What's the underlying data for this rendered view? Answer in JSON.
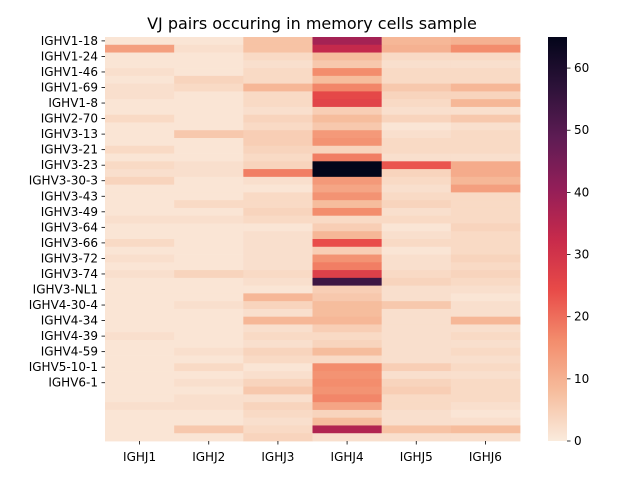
{
  "chart_data": {
    "type": "heatmap",
    "title": "VJ pairs occuring in memory cells sample",
    "xlabel": "",
    "ylabel": "",
    "columns": [
      "IGHJ1",
      "IGHJ2",
      "IGHJ3",
      "IGHJ4",
      "IGHJ5",
      "IGHJ6"
    ],
    "row_tick_labels": [
      "IGHV1-18",
      "IGHV1-24",
      "IGHV1-46",
      "IGHV1-69",
      "IGHV1-8",
      "IGHV2-70",
      "IGHV3-13",
      "IGHV3-21",
      "IGHV3-23",
      "IGHV3-30-3",
      "IGHV3-43",
      "IGHV3-49",
      "IGHV3-64",
      "IGHV3-66",
      "IGHV3-72",
      "IGHV3-74",
      "IGHV3-NL1",
      "IGHV4-30-4",
      "IGHV4-34",
      "IGHV4-39",
      "IGHV4-59",
      "IGHV5-10-1",
      "IGHV6-1"
    ],
    "values": [
      [
        1,
        1,
        7,
        38,
        9,
        10
      ],
      [
        13,
        2,
        7,
        33,
        10,
        16
      ],
      [
        1,
        1,
        3,
        8,
        3,
        3
      ],
      [
        1,
        1,
        2,
        6,
        2,
        2
      ],
      [
        2,
        1,
        3,
        16,
        3,
        3
      ],
      [
        1,
        4,
        3,
        8,
        3,
        3
      ],
      [
        2,
        3,
        9,
        17,
        6,
        9
      ],
      [
        2,
        1,
        3,
        25,
        4,
        4
      ],
      [
        1,
        1,
        3,
        26,
        3,
        9
      ],
      [
        1,
        1,
        2,
        5,
        2,
        2
      ],
      [
        3,
        1,
        4,
        8,
        4,
        6
      ],
      [
        1,
        1,
        3,
        6,
        1,
        2
      ],
      [
        1,
        6,
        5,
        14,
        2,
        3
      ],
      [
        1,
        1,
        5,
        15,
        3,
        3
      ],
      [
        3,
        1,
        4,
        4,
        3,
        3
      ],
      [
        1,
        1,
        3,
        18,
        2,
        2
      ],
      [
        3,
        2,
        4,
        65,
        23,
        11
      ],
      [
        2,
        2,
        18,
        65,
        4,
        11
      ],
      [
        4,
        1,
        2,
        14,
        3,
        9
      ],
      [
        1,
        1,
        1,
        12,
        2,
        13
      ],
      [
        1,
        1,
        3,
        15,
        3,
        3
      ],
      [
        1,
        3,
        3,
        8,
        4,
        3
      ],
      [
        1,
        1,
        4,
        16,
        2,
        3
      ],
      [
        2,
        2,
        3,
        3,
        3,
        3
      ],
      [
        1,
        1,
        1,
        5,
        1,
        4
      ],
      [
        1,
        1,
        2,
        9,
        2,
        3
      ],
      [
        3,
        1,
        2,
        24,
        3,
        3
      ],
      [
        1,
        1,
        2,
        5,
        1,
        3
      ],
      [
        2,
        1,
        2,
        15,
        2,
        4
      ],
      [
        1,
        1,
        2,
        18,
        2,
        3
      ],
      [
        2,
        4,
        3,
        27,
        3,
        4
      ],
      [
        1,
        1,
        2,
        54,
        4,
        3
      ],
      [
        1,
        1,
        1,
        5,
        2,
        2
      ],
      [
        1,
        1,
        9,
        6,
        2,
        1
      ],
      [
        1,
        2,
        4,
        8,
        6,
        2
      ],
      [
        1,
        1,
        2,
        8,
        2,
        2
      ],
      [
        1,
        1,
        9,
        9,
        2,
        9
      ],
      [
        1,
        1,
        2,
        5,
        2,
        2
      ],
      [
        2,
        1,
        3,
        3,
        2,
        3
      ],
      [
        1,
        1,
        2,
        4,
        2,
        2
      ],
      [
        1,
        2,
        4,
        8,
        2,
        3
      ],
      [
        1,
        1,
        3,
        3,
        2,
        2
      ],
      [
        1,
        3,
        1,
        16,
        5,
        3
      ],
      [
        1,
        1,
        2,
        15,
        2,
        2
      ],
      [
        1,
        2,
        4,
        16,
        4,
        3
      ],
      [
        1,
        1,
        6,
        15,
        5,
        3
      ],
      [
        1,
        2,
        2,
        17,
        3,
        3
      ],
      [
        2,
        2,
        4,
        12,
        3,
        2
      ],
      [
        1,
        1,
        3,
        4,
        2,
        1
      ],
      [
        1,
        1,
        2,
        8,
        2,
        2
      ],
      [
        1,
        6,
        3,
        36,
        7,
        8
      ],
      [
        1,
        1,
        4,
        2,
        2,
        2
      ]
    ],
    "color_scale": {
      "name": "rocket_r",
      "vmin": 0,
      "vmax": 65,
      "ticks": [
        0,
        10,
        20,
        30,
        40,
        50,
        60
      ],
      "stops": [
        "#faebdd",
        "#f6bc9c",
        "#f38c6c",
        "#e84a48",
        "#c72a4b",
        "#931e58",
        "#5e1c54",
        "#2d1239",
        "#03051a"
      ]
    },
    "grid": false,
    "legend": "colorbar right"
  }
}
